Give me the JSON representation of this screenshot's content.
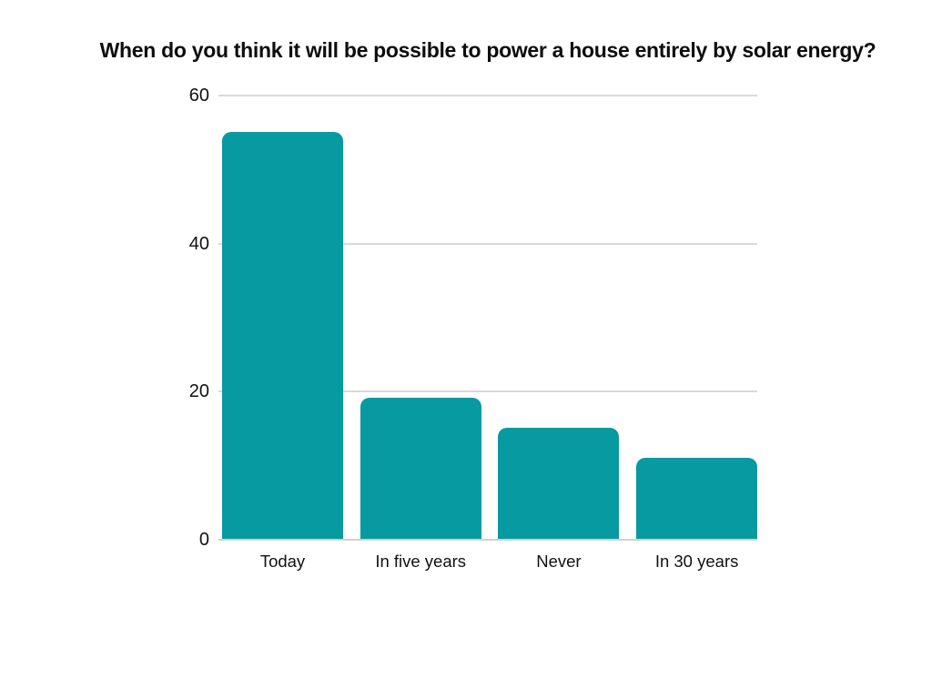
{
  "page": {
    "background": "#ffffff"
  },
  "chart_data": {
    "type": "bar",
    "title": "When do you think it will be possible to power a house entirely by solar energy?",
    "categories": [
      "Today",
      "In five years",
      "Never",
      "In 30 years"
    ],
    "values": [
      55,
      19,
      15,
      11
    ],
    "xlabel": "",
    "ylabel": "",
    "yticks": [
      0,
      20,
      40,
      60
    ],
    "ylim": [
      0,
      60
    ],
    "grid": true,
    "legend": false,
    "colors": {
      "bar": "#079aa0",
      "gridline": "#d9d9d9",
      "baseline": "#d0d0d0",
      "title_text": "#0d0d0d",
      "tick_text": "#111111"
    }
  }
}
